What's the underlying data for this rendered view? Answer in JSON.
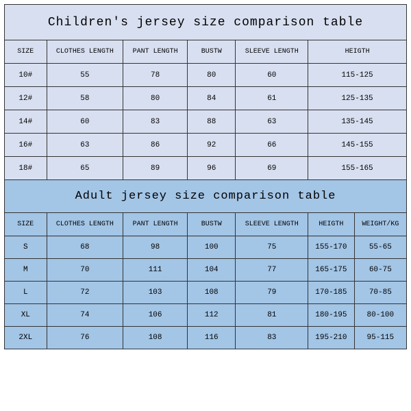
{
  "children": {
    "title": "Children's jersey size comparison table",
    "background_color": "#d8dff0",
    "border_color": "#333333",
    "title_fontsize": 18,
    "header_fontsize": 10,
    "cell_fontsize": 11,
    "columns": [
      "SIZE",
      "CLOTHES LENGTH",
      "PANT LENGTH",
      "BUSTW",
      "SLEEVE LENGTH",
      "HEIGTH"
    ],
    "column_widths_pct": [
      10.5,
      19,
      16,
      12,
      18,
      24.5
    ],
    "rows": [
      [
        "10#",
        "55",
        "78",
        "80",
        "60",
        "115-125"
      ],
      [
        "12#",
        "58",
        "80",
        "84",
        "61",
        "125-135"
      ],
      [
        "14#",
        "60",
        "83",
        "88",
        "63",
        "135-145"
      ],
      [
        "16#",
        "63",
        "86",
        "92",
        "66",
        "145-155"
      ],
      [
        "18#",
        "65",
        "89",
        "96",
        "69",
        "155-165"
      ]
    ]
  },
  "adult": {
    "title": "Adult jersey size comparison table",
    "background_color": "#a3c5e6",
    "border_color": "#333333",
    "title_fontsize": 17,
    "header_fontsize": 10,
    "cell_fontsize": 11,
    "columns": [
      "SIZE",
      "CLOTHES LENGTH",
      "PANT LENGTH",
      "BUSTW",
      "SLEEVE LENGTH",
      "HEIGTH",
      "WEIGHT/KG"
    ],
    "column_widths_pct": [
      10.5,
      19,
      16,
      12,
      18,
      11.5,
      13
    ],
    "rows": [
      [
        "S",
        "68",
        "98",
        "100",
        "75",
        "155-170",
        "55-65"
      ],
      [
        "M",
        "70",
        "111",
        "104",
        "77",
        "165-175",
        "60-75"
      ],
      [
        "L",
        "72",
        "103",
        "108",
        "79",
        "170-185",
        "70-85"
      ],
      [
        "XL",
        "74",
        "106",
        "112",
        "81",
        "180-195",
        "80-100"
      ],
      [
        "2XL",
        "76",
        "108",
        "116",
        "83",
        "195-210",
        "95-115"
      ]
    ]
  }
}
